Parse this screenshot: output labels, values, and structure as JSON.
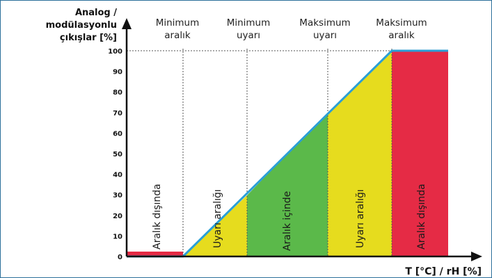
{
  "y_axis_title": [
    "Analog /",
    "modülasyonlu",
    "çıkışlar [%]"
  ],
  "x_axis_title": "T [°C] / rH [%]",
  "headers": [
    [
      "Minimum",
      "aralık"
    ],
    [
      "Minimum",
      "uyarı"
    ],
    [
      "Maksimum",
      "uyarı"
    ],
    [
      "Maksimum",
      "aralık"
    ]
  ],
  "zone_labels": [
    "Aralık dışında",
    "Uyarı aralığı",
    "Aralık içinde",
    "Uyarı aralığı",
    "Aralık dışında"
  ],
  "colors": {
    "out_of_range": "#e52b45",
    "warning": "#e6dc1e",
    "in_range": "#5bb94a",
    "line": "#2a9fd6",
    "axis": "#111111"
  },
  "chart_data": {
    "type": "area",
    "x": [
      "Minimum aralık",
      "Minimum uyarı",
      "Maksimum uyarı",
      "Maksimum aralık"
    ],
    "y_values": [
      0,
      30,
      70,
      100
    ],
    "ylim": [
      0,
      100
    ],
    "yticks": [
      "0",
      "10",
      "20",
      "30",
      "40",
      "50",
      "60",
      "70",
      "80",
      "90",
      "100"
    ]
  }
}
